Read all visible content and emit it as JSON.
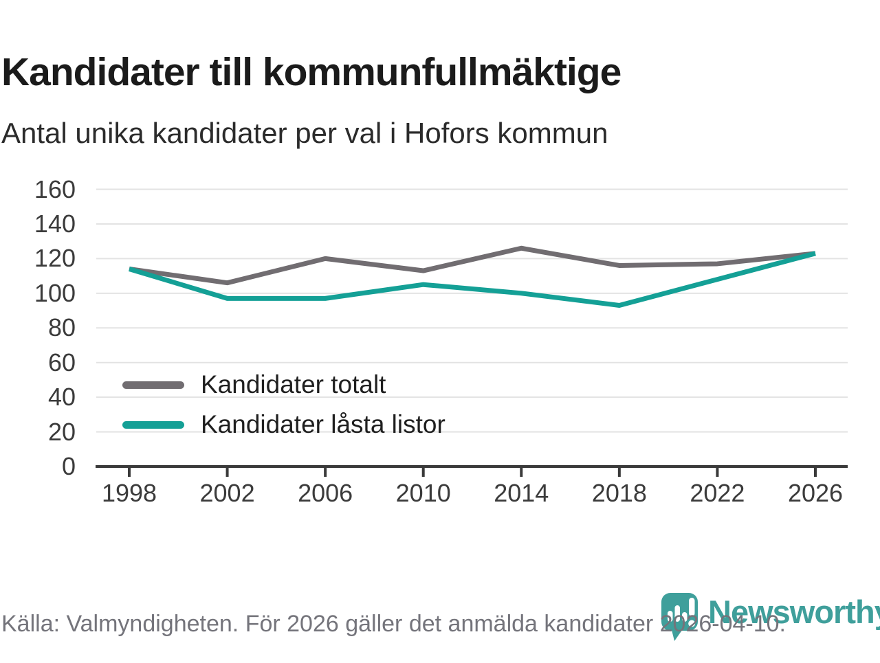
{
  "header": {
    "title": "Kandidater till kommunfullmäktige",
    "subtitle": "Antal unika kandidater per val i Hofors kommun"
  },
  "chart_data": {
    "type": "line",
    "categories": [
      "1998",
      "2002",
      "2006",
      "2010",
      "2014",
      "2018",
      "2022",
      "2026"
    ],
    "series": [
      {
        "name": "Kandidater totalt",
        "color": "#716d71",
        "values": [
          114,
          106,
          120,
          113,
          126,
          116,
          117,
          123
        ]
      },
      {
        "name": "Kandidater låsta listor",
        "color": "#14a096",
        "values": [
          114,
          97,
          97,
          105,
          100,
          93,
          108,
          123
        ]
      }
    ],
    "title": "Kandidater till kommunfullmäktige",
    "subtitle": "Antal unika kandidater per val i Hofors kommun",
    "xlabel": "",
    "ylabel": "",
    "ylim": [
      0,
      160
    ],
    "yticks": [
      0,
      20,
      40,
      60,
      80,
      100,
      120,
      140,
      160
    ],
    "grid": "horizontal",
    "legend_position": "inside-left-middle"
  },
  "footer": {
    "source": "Källa: Valmyndigheten. För 2026 gäller det anmälda kandidater 2026-04-10.",
    "brand": "Newsworthy"
  },
  "colors": {
    "series_total_gray": "#716d71",
    "series_locked_teal": "#14a096",
    "logo_teal": "#3f9f9b",
    "gridline": "#e3e3e3",
    "axis": "#3a3a3a",
    "footer_text": "#74747b"
  }
}
